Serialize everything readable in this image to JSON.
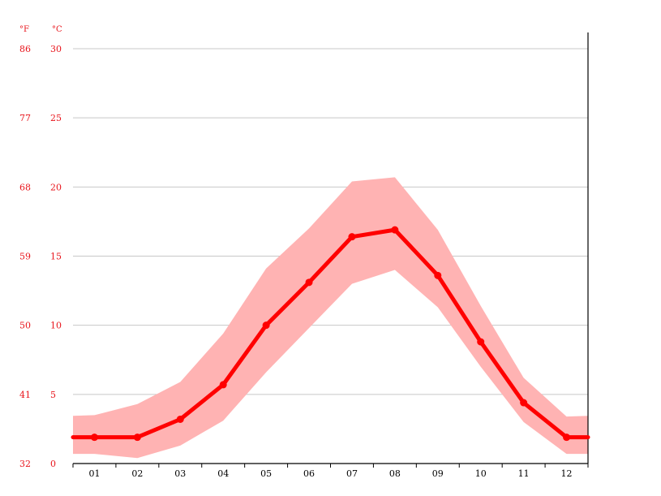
{
  "chart_data": {
    "type": "line",
    "title": "",
    "xlabel": "",
    "ylabel": "",
    "categories": [
      "01",
      "02",
      "03",
      "04",
      "05",
      "06",
      "07",
      "08",
      "09",
      "10",
      "11",
      "12"
    ],
    "series": [
      {
        "values": [
          1.9,
          1.9,
          3.2,
          5.7,
          10.0,
          13.1,
          16.4,
          16.9,
          13.6,
          8.8,
          4.4,
          1.9
        ],
        "color": "#ff0000"
      }
    ],
    "range_band": {
      "color": "#ffb3b3",
      "low": [
        0.7,
        0.4,
        1.3,
        3.1,
        6.6,
        9.8,
        13.0,
        14.0,
        11.3,
        7.0,
        3.0,
        0.7
      ],
      "high": [
        3.5,
        4.3,
        5.9,
        9.4,
        14.1,
        17.0,
        20.4,
        20.7,
        16.9,
        11.4,
        6.2,
        3.4
      ]
    },
    "y_celsius": {
      "unit_label": "°C",
      "ticks": [
        0,
        5,
        10,
        15,
        20,
        25,
        30
      ],
      "ylim": [
        0,
        30
      ]
    },
    "y_fahrenheit": {
      "unit_label": "°F",
      "ticks": [
        "32",
        "41",
        "50",
        "59",
        "68",
        "77",
        "86"
      ]
    },
    "grid": true,
    "legend": "none"
  }
}
